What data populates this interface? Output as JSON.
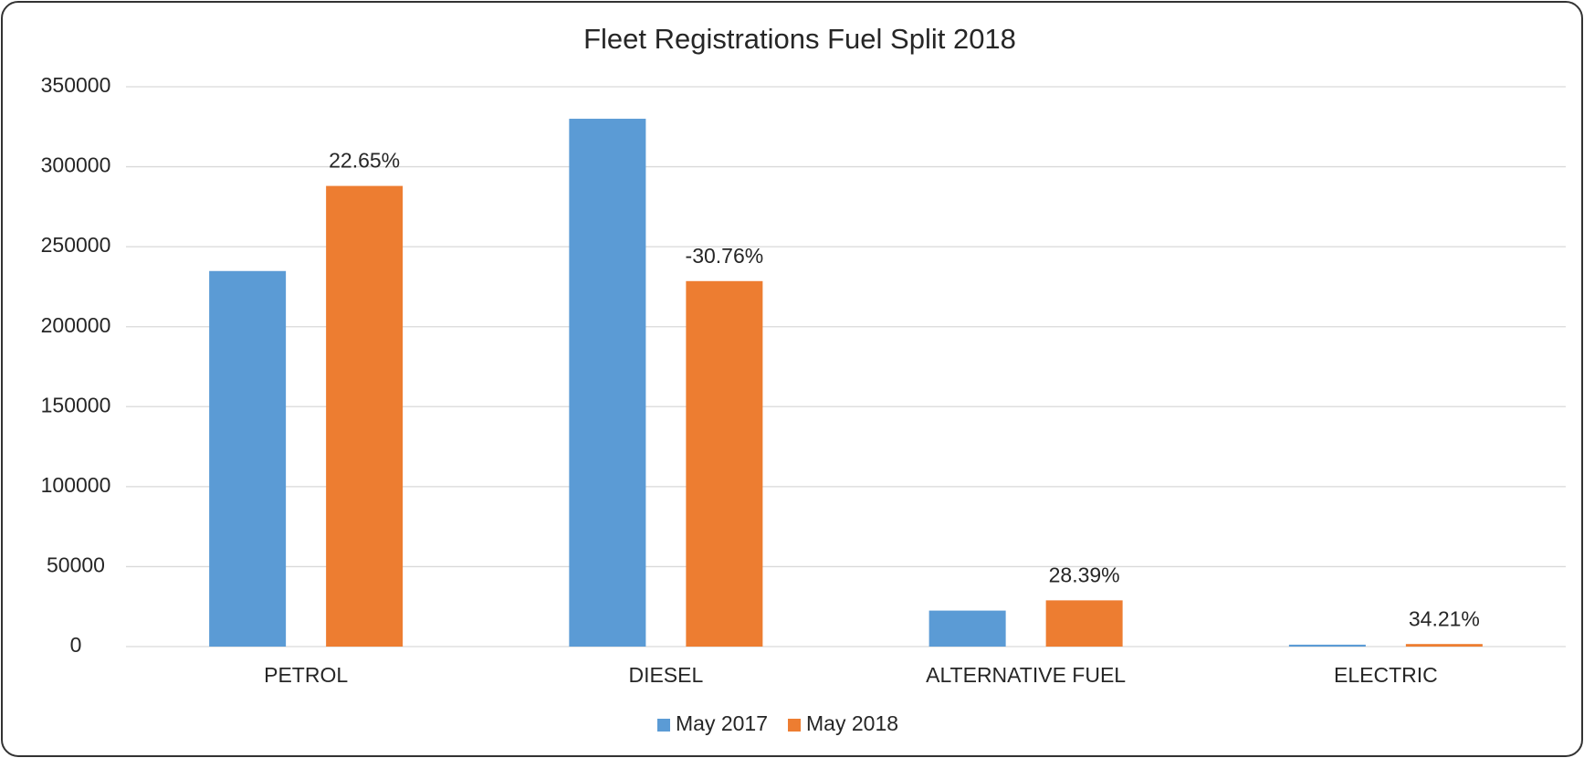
{
  "chart_data": {
    "type": "bar",
    "title": "Fleet Registrations Fuel Split 2018",
    "categories": [
      "PETROL",
      "DIESEL",
      "ALTERNATIVE FUEL",
      "ELECTRIC"
    ],
    "series": [
      {
        "name": "May 2017",
        "color": "#5b9bd5",
        "values": [
          234800,
          330000,
          22500,
          1200
        ]
      },
      {
        "name": "May 2018",
        "color": "#ed7d31",
        "values": [
          288000,
          228500,
          28900,
          1600
        ]
      }
    ],
    "annotations": [
      "22.65%",
      "-30.76%",
      "28.39%",
      "34.21%"
    ],
    "ylim": [
      0,
      350000
    ],
    "yticks": [
      0,
      50000,
      100000,
      150000,
      200000,
      250000,
      300000,
      350000
    ],
    "grid": true,
    "legend": "bottom"
  }
}
